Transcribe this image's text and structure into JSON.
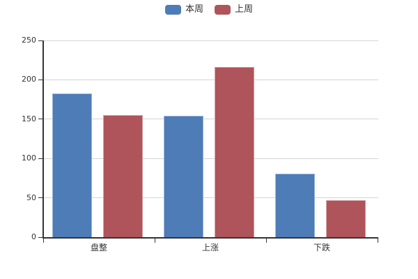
{
  "chart_data": {
    "type": "bar",
    "title": "",
    "xlabel": "",
    "ylabel": "",
    "categories": [
      "盘整",
      "上涨",
      "下跌"
    ],
    "series": [
      {
        "name": "本周",
        "color": "#4d7cb7",
        "values": [
          183,
          154,
          81
        ]
      },
      {
        "name": "上周",
        "color": "#af545a",
        "values": [
          155,
          216,
          47
        ]
      }
    ],
    "ylim": [
      0,
      250
    ],
    "yticks": [
      0,
      50,
      100,
      150,
      200,
      250
    ],
    "grid": true,
    "legend_position": "top-center",
    "colors": {
      "grid": "#d4d4d4",
      "axis": "#333333",
      "label_text": "#333333",
      "background": "#ffffff"
    }
  }
}
